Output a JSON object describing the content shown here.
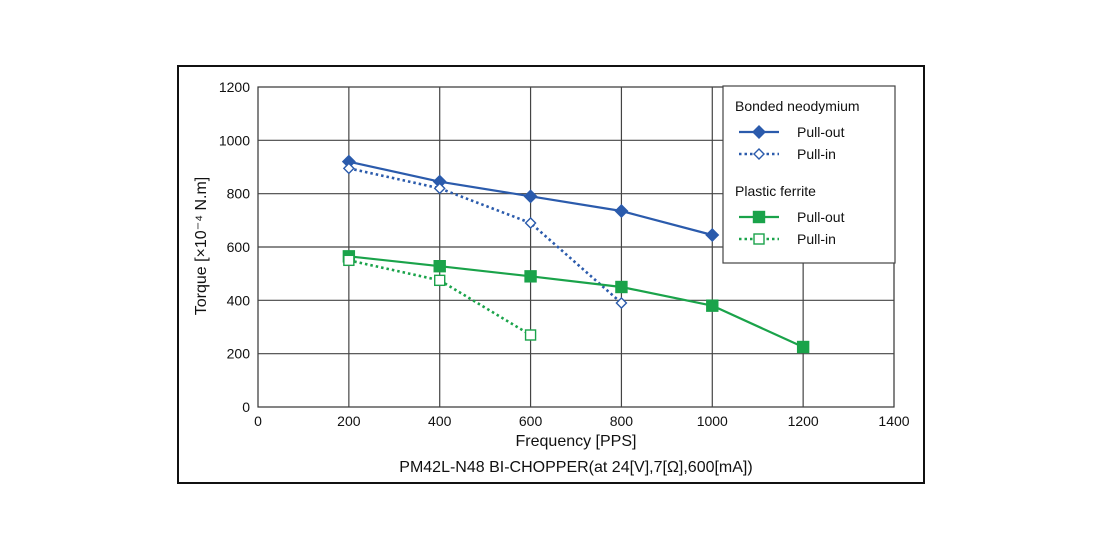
{
  "chart_data": {
    "type": "line",
    "title": "",
    "caption": "PM42L-N48 BI-CHOPPER(at 24[V],7[Ω],600[mA])",
    "xlabel": "Frequency [PPS]",
    "ylabel": "Torque [×10⁻⁴ N.m]",
    "xlim": [
      0,
      1400
    ],
    "ylim": [
      0,
      1200
    ],
    "xticks": [
      "0",
      "200",
      "400",
      "600",
      "800",
      "1000",
      "1200",
      "1400"
    ],
    "yticks": [
      "0",
      "200",
      "400",
      "600",
      "800",
      "1000",
      "1200"
    ],
    "grid": true,
    "legend_position": "top-right",
    "groups": [
      {
        "name": "Bonded neodymium",
        "color": "#2b5bac",
        "series": [
          {
            "name": "Pull-out",
            "marker": "diamond",
            "filled": true,
            "style": "solid",
            "x": [
              200,
              400,
              600,
              800,
              1000
            ],
            "y": [
              920,
              845,
              790,
              735,
              645
            ]
          },
          {
            "name": "Pull-in",
            "marker": "diamond",
            "filled": false,
            "style": "dotted",
            "x": [
              200,
              400,
              600,
              800
            ],
            "y": [
              895,
              820,
              690,
              390
            ]
          }
        ]
      },
      {
        "name": "Plastic ferrite",
        "color": "#1aa34a",
        "series": [
          {
            "name": "Pull-out",
            "marker": "square",
            "filled": true,
            "style": "solid",
            "x": [
              200,
              400,
              600,
              800,
              1000,
              1200
            ],
            "y": [
              565,
              528,
              490,
              450,
              380,
              225
            ]
          },
          {
            "name": "Pull-in",
            "marker": "square",
            "filled": false,
            "style": "dotted",
            "x": [
              200,
              400,
              600
            ],
            "y": [
              550,
              475,
              270
            ]
          }
        ]
      }
    ]
  }
}
